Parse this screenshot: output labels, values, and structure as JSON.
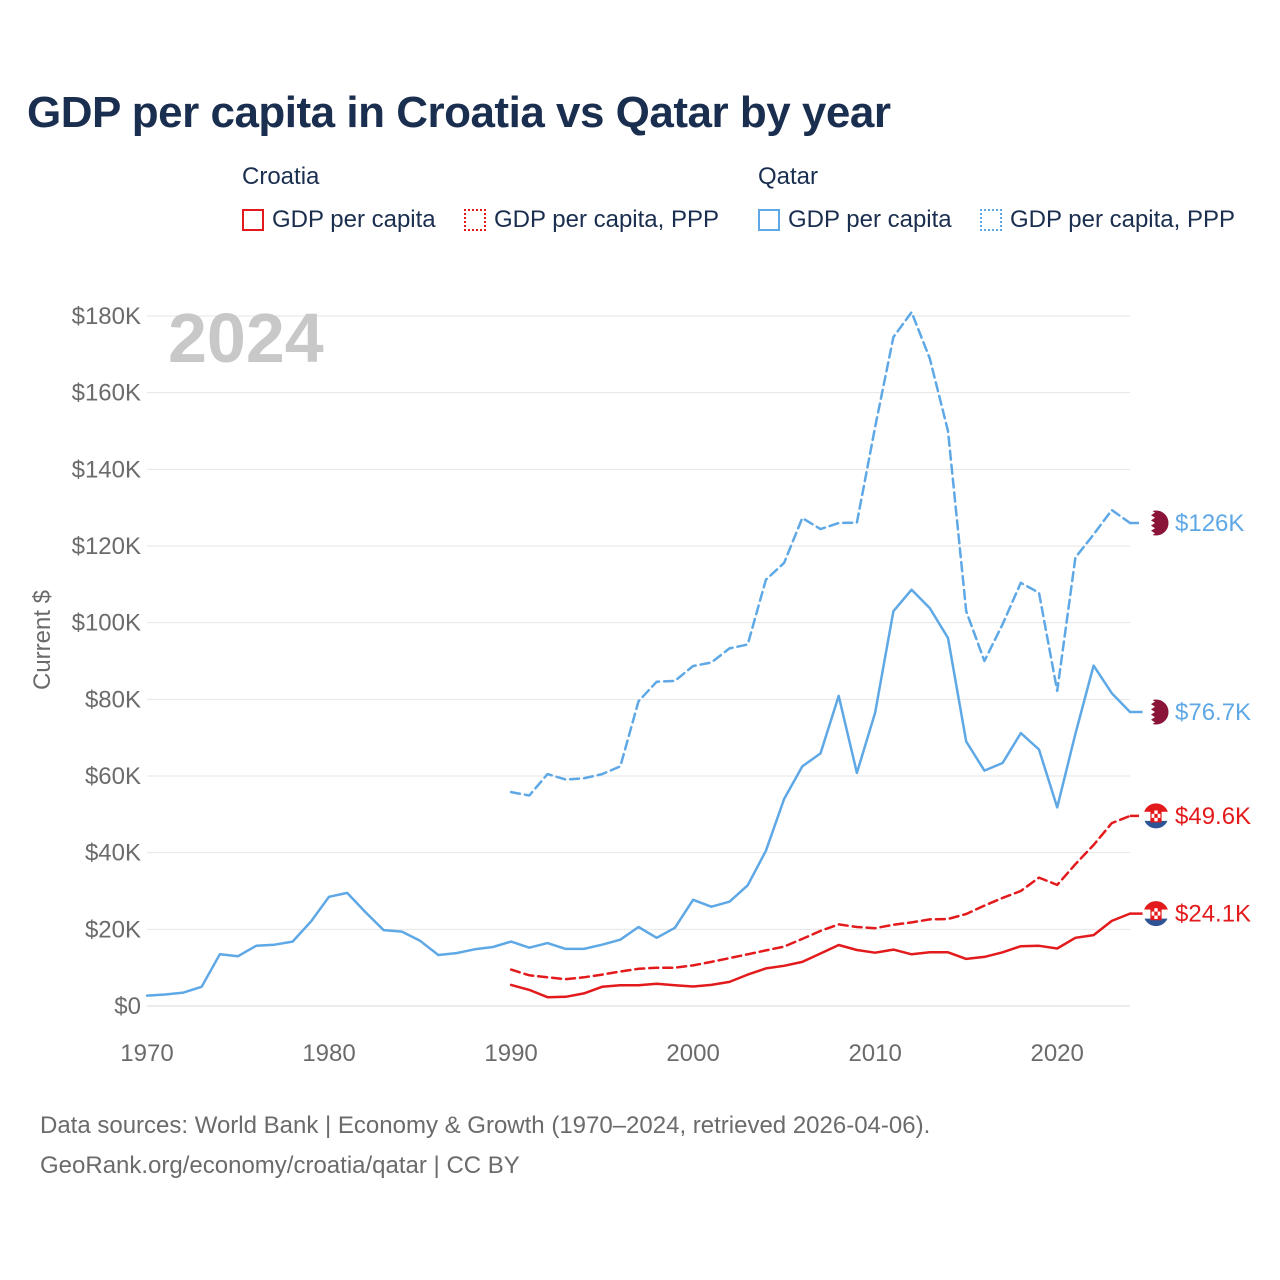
{
  "title": "GDP per capita in Croatia vs Qatar by year",
  "legend": {
    "groups": [
      {
        "label": "Croatia",
        "color": "#e31a1c",
        "items": [
          {
            "label": "GDP per capita",
            "style": "solid"
          },
          {
            "label": "GDP per capita, PPP",
            "style": "dotted"
          }
        ]
      },
      {
        "label": "Qatar",
        "color": "#5fa8e6",
        "items": [
          {
            "label": "GDP per capita",
            "style": "solid"
          },
          {
            "label": "GDP per capita, PPP",
            "style": "dotted"
          }
        ]
      }
    ]
  },
  "footer": {
    "line1": "Data sources: World Bank | Economy & Growth (1970–2024, retrieved 2026-04-06).",
    "line2": "GeoRank.org/economy/croatia/qatar | CC BY"
  },
  "chart_data": {
    "type": "line",
    "title": "GDP per capita in Croatia vs Qatar by year",
    "ylabel": "Current $",
    "xlabel": "",
    "year_watermark": "2024",
    "xlim": [
      1970,
      2024
    ],
    "ylim": [
      0,
      180000
    ],
    "x_ticks": [
      "1970",
      "1980",
      "1990",
      "2000",
      "2010",
      "2020"
    ],
    "y_ticks": [
      {
        "value": 0,
        "label": "$0"
      },
      {
        "value": 20000,
        "label": "$20K"
      },
      {
        "value": 40000,
        "label": "$40K"
      },
      {
        "value": 60000,
        "label": "$60K"
      },
      {
        "value": 80000,
        "label": "$80K"
      },
      {
        "value": 100000,
        "label": "$100K"
      },
      {
        "value": 120000,
        "label": "$120K"
      },
      {
        "value": 140000,
        "label": "$140K"
      },
      {
        "value": 160000,
        "label": "$160K"
      },
      {
        "value": 180000,
        "label": "$180K"
      }
    ],
    "grid": true,
    "series": [
      {
        "name": "Qatar GDP per capita",
        "country": "Qatar",
        "color": "#5fa8e6",
        "dash": "solid",
        "end_label": "$76.7K",
        "start_year": 1970,
        "values": [
          2700,
          3000,
          3500,
          5000,
          13500,
          13000,
          15700,
          16000,
          16800,
          22000,
          28500,
          29500,
          24500,
          19800,
          19400,
          17000,
          13300,
          13800,
          14800,
          15400,
          16800,
          15200,
          16400,
          14900,
          14900,
          16000,
          17300,
          20600,
          17800,
          20400,
          27700,
          25900,
          27200,
          31500,
          40500,
          54000,
          62500,
          65900,
          80900,
          60800,
          76500,
          103000,
          108600,
          103800,
          96000,
          69000,
          61400,
          63400,
          71200,
          66900,
          51800,
          71000,
          88800,
          81600,
          76700
        ]
      },
      {
        "name": "Qatar GDP per capita, PPP",
        "country": "Qatar",
        "color": "#5fa8e6",
        "dash": "dashed",
        "end_label": "$126K",
        "start_year": 1990,
        "values": [
          55800,
          54900,
          60500,
          59100,
          59400,
          60500,
          62500,
          79500,
          84600,
          84800,
          88700,
          89600,
          93300,
          94300,
          111200,
          115600,
          127300,
          124400,
          126000,
          126100,
          151000,
          174500,
          181000,
          168900,
          150000,
          103000,
          90000,
          99600,
          110400,
          107800,
          82200,
          117000,
          123000,
          129400,
          126000
        ]
      },
      {
        "name": "Croatia GDP per capita, PPP",
        "country": "Croatia",
        "color": "#e31a1c",
        "dash": "dashed",
        "end_label": "$49.6K",
        "start_year": 1990,
        "values": [
          9500,
          8000,
          7500,
          7000,
          7500,
          8200,
          9000,
          9700,
          10000,
          10000,
          10600,
          11500,
          12500,
          13500,
          14500,
          15500,
          17500,
          19600,
          21300,
          20600,
          20300,
          21200,
          21800,
          22600,
          22700,
          24000,
          26200,
          28200,
          30000,
          33500,
          31600,
          37000,
          42000,
          47700,
          49600
        ]
      },
      {
        "name": "Croatia GDP per capita",
        "country": "Croatia",
        "color": "#e31a1c",
        "dash": "solid",
        "end_label": "$24.1K",
        "start_year": 1990,
        "values": [
          5500,
          4200,
          2300,
          2400,
          3300,
          5000,
          5400,
          5400,
          5800,
          5400,
          5100,
          5500,
          6300,
          8200,
          9800,
          10500,
          11500,
          13700,
          15900,
          14600,
          13900,
          14700,
          13500,
          14000,
          14000,
          12300,
          12800,
          14000,
          15600,
          15700,
          15000,
          17800,
          18500,
          22200,
          24100
        ]
      }
    ]
  }
}
